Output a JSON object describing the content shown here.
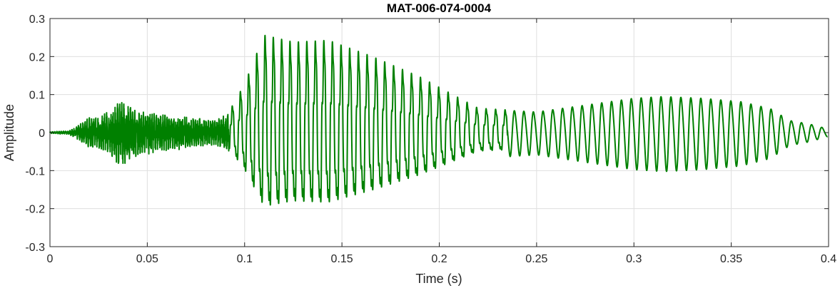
{
  "chart_data": {
    "type": "line",
    "title": "MAT-006-074-0004",
    "xlabel": "Time (s)",
    "ylabel": "Amplitude",
    "xlim": [
      0,
      0.4
    ],
    "ylim": [
      -0.3,
      0.3
    ],
    "grid": true,
    "line_color": "#008000",
    "x_ticks": [
      0,
      0.05,
      0.1,
      0.15,
      0.2,
      0.25,
      0.3,
      0.35,
      0.4
    ],
    "x_tick_labels": [
      "0",
      "0.05",
      "0.1",
      "0.15",
      "0.2",
      "0.25",
      "0.3",
      "0.35",
      "0.4"
    ],
    "y_ticks": [
      -0.3,
      -0.2,
      -0.1,
      0,
      0.1,
      0.2,
      0.3
    ],
    "y_tick_labels": [
      "-0.3",
      "-0.2",
      "-0.1",
      "0",
      "0.1",
      "0.2",
      "0.3"
    ],
    "series": [
      {
        "x": [
          0,
          0.01,
          0.02,
          0.03,
          0.036,
          0.045,
          0.06,
          0.075,
          0.085,
          0.092,
          0.1,
          0.11,
          0.125,
          0.143,
          0.165,
          0.19,
          0.2,
          0.22,
          0.25,
          0.275,
          0.3,
          0.315,
          0.335,
          0.355,
          0.37,
          0.38,
          0.39,
          0.4
        ],
        "y": [
          0.002,
          0.005,
          0.04,
          0.055,
          0.09,
          0.06,
          0.05,
          0.04,
          0.035,
          0.06,
          0.14,
          0.28,
          0.26,
          0.265,
          0.22,
          0.16,
          0.13,
          0.07,
          0.06,
          0.08,
          0.1,
          0.105,
          0.1,
          0.09,
          0.07,
          0.035,
          0.025,
          0.01
        ]
      }
    ]
  }
}
